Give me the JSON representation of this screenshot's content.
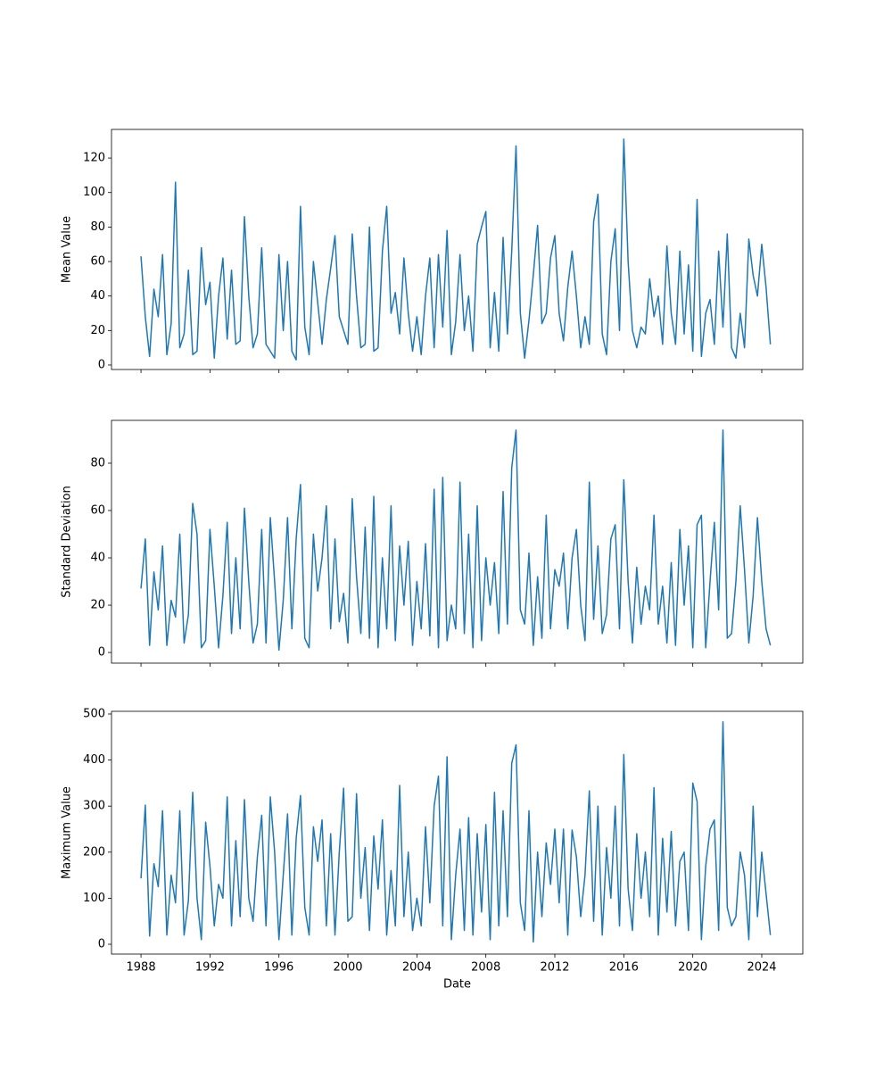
{
  "chart_data": {
    "type": "line",
    "xlabel": "Date",
    "color": "#1f77b4",
    "x": [
      1988,
      1988.25,
      1988.5,
      1988.75,
      1989,
      1989.25,
      1989.5,
      1989.75,
      1990,
      1990.25,
      1990.5,
      1990.75,
      1991,
      1991.25,
      1991.5,
      1991.75,
      1992,
      1992.25,
      1992.5,
      1992.75,
      1993,
      1993.25,
      1993.5,
      1993.75,
      1994,
      1994.25,
      1994.5,
      1994.75,
      1995,
      1995.25,
      1995.5,
      1995.75,
      1996,
      1996.25,
      1996.5,
      1996.75,
      1997,
      1997.25,
      1997.5,
      1997.75,
      1998,
      1998.25,
      1998.5,
      1998.75,
      1999,
      1999.25,
      1999.5,
      1999.75,
      2000,
      2000.25,
      2000.5,
      2000.75,
      2001,
      2001.25,
      2001.5,
      2001.75,
      2002,
      2002.25,
      2002.5,
      2002.75,
      2003,
      2003.25,
      2003.5,
      2003.75,
      2004,
      2004.25,
      2004.5,
      2004.75,
      2005,
      2005.25,
      2005.5,
      2005.75,
      2006,
      2006.25,
      2006.5,
      2006.75,
      2007,
      2007.25,
      2007.5,
      2007.75,
      2008,
      2008.25,
      2008.5,
      2008.75,
      2009,
      2009.25,
      2009.5,
      2009.75,
      2010,
      2010.25,
      2010.5,
      2010.75,
      2011,
      2011.25,
      2011.5,
      2011.75,
      2012,
      2012.25,
      2012.5,
      2012.75,
      2013,
      2013.25,
      2013.5,
      2013.75,
      2014,
      2014.25,
      2014.5,
      2014.75,
      2015,
      2015.25,
      2015.5,
      2015.75,
      2016,
      2016.25,
      2016.5,
      2016.75,
      2017,
      2017.25,
      2017.5,
      2017.75,
      2018,
      2018.25,
      2018.5,
      2018.75,
      2019,
      2019.25,
      2019.5,
      2019.75,
      2020,
      2020.25,
      2020.5,
      2020.75,
      2021,
      2021.25,
      2021.5,
      2021.75,
      2022,
      2022.25,
      2022.5,
      2022.75,
      2023,
      2023.25,
      2023.5,
      2023.75,
      2024,
      2024.25,
      2024.5
    ],
    "xlim": [
      1986.29,
      2026.38
    ],
    "xticks": [
      1988,
      1992,
      1996,
      2000,
      2004,
      2008,
      2012,
      2016,
      2020,
      2024
    ],
    "panels": [
      {
        "ylabel": "Mean Value",
        "ylim": [
          -2.6,
          136.6
        ],
        "yticks": [
          0,
          20,
          40,
          60,
          80,
          100,
          120
        ],
        "show_xticklabels": false,
        "values": [
          63,
          28,
          5,
          44,
          28,
          64,
          6,
          24,
          106,
          10,
          18,
          55,
          6,
          8,
          68,
          35,
          48,
          4,
          40,
          62,
          15,
          55,
          12,
          14,
          86,
          40,
          10,
          18,
          68,
          12,
          8,
          4,
          64,
          20,
          60,
          8,
          3,
          92,
          22,
          6,
          60,
          36,
          12,
          38,
          56,
          75,
          28,
          20,
          12,
          76,
          40,
          10,
          12,
          80,
          8,
          10,
          66,
          92,
          30,
          42,
          18,
          62,
          30,
          8,
          28,
          6,
          40,
          62,
          10,
          64,
          22,
          78,
          6,
          25,
          64,
          20,
          40,
          8,
          70,
          80,
          89,
          10,
          42,
          8,
          74,
          18,
          66,
          127,
          30,
          4,
          26,
          52,
          81,
          24,
          30,
          62,
          75,
          30,
          14,
          45,
          66,
          40,
          10,
          28,
          12,
          83,
          99,
          18,
          6,
          60,
          79,
          20,
          131,
          60,
          20,
          10,
          22,
          18,
          50,
          28,
          40,
          12,
          69,
          30,
          12,
          66,
          18,
          58,
          8,
          96,
          5,
          30,
          38,
          12,
          66,
          22,
          76,
          10,
          4,
          30,
          10,
          73,
          52,
          40,
          70,
          45,
          12
        ]
      },
      {
        "ylabel": "Standard Deviation",
        "ylim": [
          -4.5,
          98.1
        ],
        "yticks": [
          0,
          20,
          40,
          60,
          80
        ],
        "show_xticklabels": false,
        "values": [
          27,
          48,
          3,
          34,
          18,
          45,
          3,
          22,
          15,
          50,
          4,
          16,
          63,
          50,
          2,
          5,
          52,
          28,
          2,
          24,
          55,
          8,
          40,
          10,
          61,
          30,
          4,
          12,
          52,
          4,
          57,
          30,
          1,
          22,
          57,
          10,
          48,
          71,
          6,
          2,
          50,
          26,
          40,
          62,
          10,
          48,
          13,
          25,
          4,
          65,
          32,
          8,
          53,
          6,
          66,
          2,
          40,
          10,
          62,
          5,
          45,
          20,
          47,
          3,
          30,
          10,
          46,
          7,
          69,
          2,
          74,
          5,
          20,
          10,
          72,
          8,
          50,
          2,
          62,
          5,
          40,
          20,
          38,
          8,
          68,
          12,
          78,
          94,
          18,
          12,
          42,
          3,
          32,
          6,
          58,
          10,
          35,
          28,
          42,
          10,
          40,
          52,
          20,
          5,
          72,
          14,
          45,
          8,
          16,
          48,
          54,
          10,
          73,
          30,
          4,
          36,
          12,
          28,
          18,
          58,
          12,
          28,
          4,
          38,
          3,
          52,
          20,
          45,
          2,
          54,
          58,
          2,
          30,
          55,
          18,
          94,
          6,
          8,
          30,
          62,
          35,
          4,
          24,
          57,
          30,
          10,
          3
        ]
      },
      {
        "ylabel": "Maximum Value",
        "ylim": [
          -21.3,
          505.8
        ],
        "yticks": [
          0,
          100,
          200,
          300,
          400,
          500
        ],
        "show_xticklabels": true,
        "values": [
          143,
          302,
          18,
          175,
          125,
          290,
          20,
          150,
          90,
          290,
          20,
          95,
          330,
          100,
          10,
          265,
          170,
          40,
          130,
          100,
          320,
          40,
          225,
          60,
          314,
          100,
          50,
          190,
          280,
          40,
          320,
          200,
          10,
          150,
          283,
          20,
          230,
          323,
          80,
          20,
          255,
          180,
          270,
          40,
          240,
          20,
          200,
          339,
          50,
          60,
          327,
          100,
          210,
          30,
          235,
          120,
          270,
          20,
          160,
          40,
          345,
          60,
          200,
          30,
          100,
          40,
          255,
          90,
          300,
          365,
          40,
          407,
          10,
          150,
          250,
          30,
          275,
          20,
          240,
          70,
          260,
          10,
          330,
          40,
          290,
          60,
          393,
          433,
          90,
          30,
          290,
          5,
          200,
          60,
          220,
          130,
          250,
          90,
          250,
          20,
          248,
          190,
          60,
          150,
          333,
          50,
          300,
          20,
          210,
          100,
          300,
          40,
          412,
          120,
          30,
          240,
          100,
          200,
          60,
          340,
          20,
          230,
          70,
          245,
          40,
          180,
          200,
          30,
          350,
          310,
          10,
          170,
          250,
          270,
          30,
          483,
          80,
          40,
          60,
          200,
          150,
          10,
          300,
          60,
          200,
          110,
          20
        ]
      }
    ]
  }
}
